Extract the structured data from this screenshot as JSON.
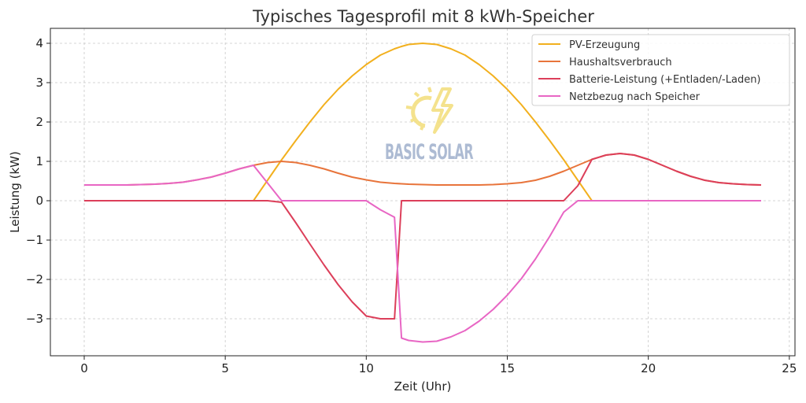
{
  "chart_data": {
    "type": "line",
    "title": "Typisches Tagesprofil mit 8 kWh-Speicher",
    "xlabel": "Zeit (Uhr)",
    "ylabel": "Leistung (kW)",
    "xlim": [
      -1.2,
      25.2
    ],
    "ylim": [
      -3.94,
      4.38
    ],
    "xticks": [
      0,
      5,
      10,
      15,
      20,
      25
    ],
    "xtick_labels": [
      "0",
      "5",
      "10",
      "15",
      "20",
      "25"
    ],
    "yticks": [
      -3,
      -2,
      -1,
      0,
      1,
      2,
      3,
      4
    ],
    "ytick_labels": [
      "−3",
      "−2",
      "−1",
      "0",
      "1",
      "2",
      "3",
      "4"
    ],
    "grid": true,
    "legend_position": "top-right",
    "x": [
      0,
      0.5,
      1,
      1.5,
      2,
      2.5,
      3,
      3.5,
      4,
      4.5,
      5,
      5.5,
      6,
      6.5,
      7,
      7.5,
      8,
      8.5,
      9,
      9.5,
      10,
      10.5,
      11,
      11.25,
      11.5,
      12,
      12.5,
      13,
      13.5,
      14,
      14.5,
      15,
      15.5,
      16,
      16.5,
      17,
      17.5,
      18,
      18.5,
      19,
      19.5,
      20,
      20.5,
      21,
      21.5,
      22,
      22.5,
      23,
      23.5,
      24
    ],
    "series": [
      {
        "name": "PV-Erzeugung",
        "color": "#f2b01e",
        "values": [
          0,
          0,
          0,
          0,
          0,
          0,
          0,
          0,
          0,
          0,
          0,
          0,
          0,
          0.52,
          1.04,
          1.53,
          2.0,
          2.44,
          2.83,
          3.17,
          3.46,
          3.7,
          3.86,
          3.92,
          3.97,
          4.0,
          3.97,
          3.86,
          3.7,
          3.46,
          3.17,
          2.83,
          2.44,
          2.0,
          1.53,
          1.04,
          0.52,
          0,
          0,
          0,
          0,
          0,
          0,
          0,
          0,
          0,
          0,
          0,
          0,
          0
        ]
      },
      {
        "name": "Haushaltsverbrauch",
        "color": "#e8743b",
        "values": [
          0.4,
          0.4,
          0.4,
          0.4,
          0.41,
          0.42,
          0.44,
          0.47,
          0.53,
          0.6,
          0.7,
          0.81,
          0.9,
          0.97,
          1.0,
          0.97,
          0.9,
          0.81,
          0.7,
          0.6,
          0.53,
          0.47,
          0.44,
          0.43,
          0.42,
          0.41,
          0.4,
          0.4,
          0.4,
          0.4,
          0.41,
          0.43,
          0.46,
          0.52,
          0.62,
          0.75,
          0.9,
          1.05,
          1.16,
          1.2,
          1.16,
          1.05,
          0.9,
          0.75,
          0.62,
          0.52,
          0.46,
          0.43,
          0.41,
          0.4
        ]
      },
      {
        "name": "Batterie-Leistung (+Entladen/-Laden)",
        "color": "#dc3f5a",
        "values": [
          0,
          0,
          0,
          0,
          0,
          0,
          0,
          0,
          0,
          0,
          0,
          0,
          0,
          0,
          -0.04,
          -0.56,
          -1.1,
          -1.63,
          -2.13,
          -2.57,
          -2.93,
          -3,
          -3,
          0,
          0,
          0,
          0,
          0,
          0,
          0,
          0,
          0,
          0,
          0,
          0,
          0,
          0.38,
          1.05,
          1.16,
          1.2,
          1.16,
          1.05,
          0.9,
          0.75,
          0.62,
          0.52,
          0.46,
          0.43,
          0.41,
          0.4
        ]
      },
      {
        "name": "Netzbezug nach Speicher",
        "color": "#e866c4",
        "values": [
          0.4,
          0.4,
          0.4,
          0.4,
          0.41,
          0.42,
          0.44,
          0.47,
          0.53,
          0.6,
          0.7,
          0.81,
          0.9,
          0.45,
          0,
          0,
          0,
          0,
          0,
          0,
          0,
          -0.23,
          -0.42,
          -3.49,
          -3.55,
          -3.59,
          -3.57,
          -3.46,
          -3.3,
          -3.06,
          -2.76,
          -2.4,
          -1.98,
          -1.48,
          -0.91,
          -0.29,
          0,
          0,
          0,
          0,
          0,
          0,
          0,
          0,
          0,
          0,
          0,
          0,
          0,
          0
        ]
      }
    ]
  },
  "watermark": {
    "text": "BASIC SOLAR",
    "icon": "sun-lightning-icon",
    "color": "#9fb0cc",
    "icon_color": "#f3de7a"
  }
}
